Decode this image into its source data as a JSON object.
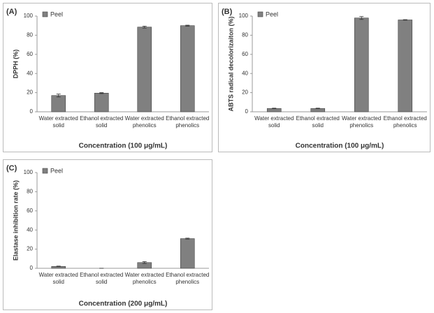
{
  "chart_data": [
    {
      "type": "bar",
      "panel_label": "(A)",
      "y_label": "DPPH (%)",
      "x_label": "Concentration (100 μg/mL)",
      "categories": [
        "Water extracted solid",
        "Ethanol extracted solid",
        "Water extracted phenolics",
        "Ethanol extracted phenolics"
      ],
      "series": [
        {
          "name": "Peel",
          "color": "#808080",
          "values": [
            17,
            19.5,
            88.5,
            90
          ],
          "errors": [
            1.5,
            0.5,
            1,
            0.5
          ]
        }
      ],
      "ylim": [
        0,
        100
      ],
      "yticks": [
        0,
        20,
        40,
        60,
        80,
        100
      ],
      "legend": "top-left"
    },
    {
      "type": "bar",
      "panel_label": "(B)",
      "y_label": "ABTS radical decolorizaiton (%)",
      "x_label": "Concentration (100 μg/mL)",
      "categories": [
        "Water extracted solid",
        "Ethanol extracted solid",
        "Water extracted phenolics",
        "Ethanol extracted phenolics"
      ],
      "series": [
        {
          "name": "Peel",
          "color": "#808080",
          "values": [
            3.5,
            3.5,
            98,
            96
          ],
          "errors": [
            0.3,
            0.3,
            1.5,
            0.3
          ]
        }
      ],
      "ylim": [
        0,
        100
      ],
      "yticks": [
        0,
        20,
        40,
        60,
        80,
        100
      ],
      "legend": "top-left"
    },
    {
      "type": "bar",
      "panel_label": "(C)",
      "y_label": "Elastase inhibition rate (%)",
      "x_label": "Concentration (200 μg/mL)",
      "categories": [
        "Water extracted solid",
        "Ethanol extracted solid",
        "Water extracted phenolics",
        "Ethanol extracted phenolics"
      ],
      "series": [
        {
          "name": "Peel",
          "color": "#808080",
          "values": [
            2,
            0,
            6,
            31
          ],
          "errors": [
            0.3,
            0,
            1,
            0.5
          ]
        }
      ],
      "ylim": [
        0,
        100
      ],
      "yticks": [
        0,
        20,
        40,
        60,
        80,
        100
      ],
      "legend": "top-left"
    }
  ]
}
